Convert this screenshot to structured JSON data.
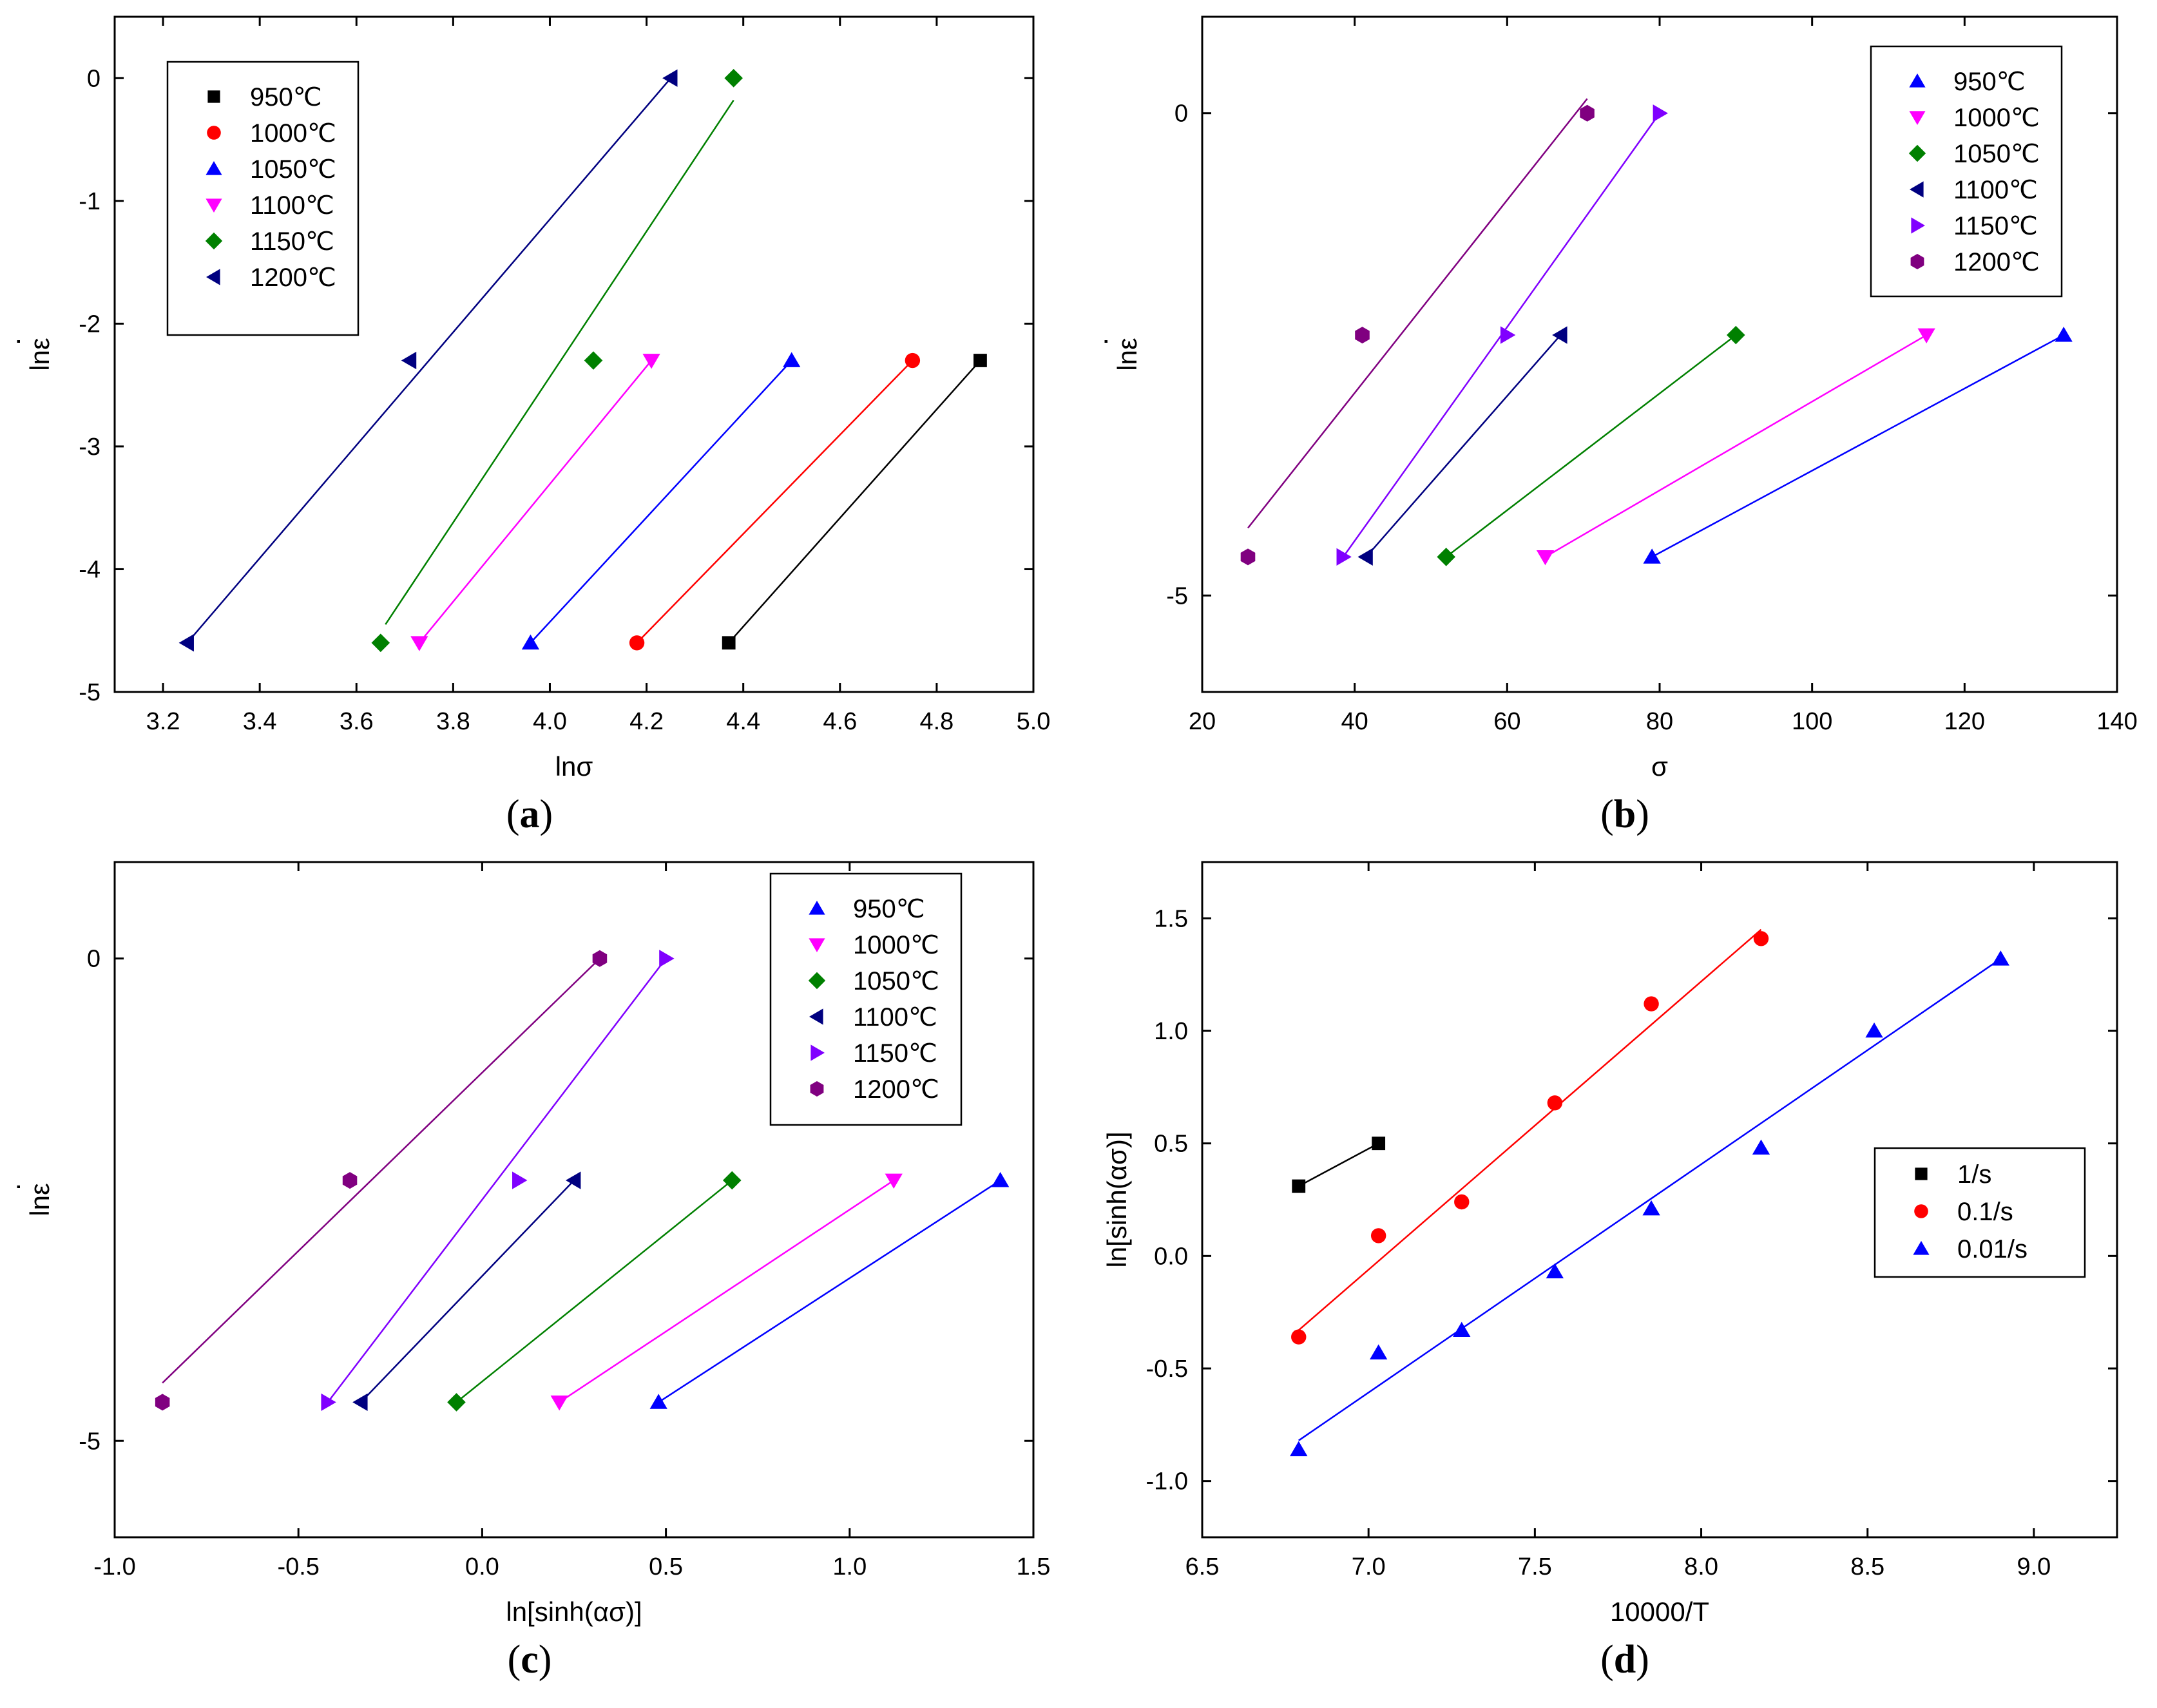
{
  "chart_data": [
    {
      "type": "scatter",
      "caption": "a",
      "xlabel": "lnσ",
      "ylabel": "lnε",
      "ylabel_dot": "·",
      "xlim": [
        3.1,
        5.0
      ],
      "ylim": [
        -5,
        0.5
      ],
      "xticks": [
        3.2,
        3.4,
        3.6,
        3.8,
        4.0,
        4.2,
        4.4,
        4.6,
        4.8,
        5.0
      ],
      "xtick_labels": [
        "3.2",
        "3.4",
        "3.6",
        "3.8",
        "4.0",
        "4.2",
        "4.4",
        "4.6",
        "4.8",
        "5.0"
      ],
      "yticks": [
        -5,
        -4,
        -3,
        -2,
        -1,
        0
      ],
      "ytick_labels": [
        "-5",
        "-4",
        "-3",
        "-2",
        "-1",
        "0"
      ],
      "legend_position": "top-left",
      "series": [
        {
          "name": "950℃",
          "marker": "square",
          "color": "#000000",
          "x": [
            4.37,
            4.89
          ],
          "y": [
            -4.6,
            -2.3
          ],
          "fit": [
            [
              4.37,
              -4.6
            ],
            [
              4.89,
              -2.3
            ]
          ]
        },
        {
          "name": "1000℃",
          "marker": "circle",
          "color": "#ff0000",
          "x": [
            4.18,
            4.75
          ],
          "y": [
            -4.6,
            -2.3
          ],
          "fit": [
            [
              4.18,
              -4.6
            ],
            [
              4.75,
              -2.3
            ]
          ]
        },
        {
          "name": "1050℃",
          "marker": "triangle-up",
          "color": "#0000ff",
          "x": [
            3.96,
            4.5
          ],
          "y": [
            -4.6,
            -2.3
          ],
          "fit": [
            [
              3.96,
              -4.6
            ],
            [
              4.5,
              -2.3
            ]
          ]
        },
        {
          "name": "1100℃",
          "marker": "triangle-down",
          "color": "#ff00ff",
          "x": [
            3.73,
            4.21
          ],
          "y": [
            -4.6,
            -2.3
          ],
          "fit": [
            [
              3.73,
              -4.6
            ],
            [
              4.21,
              -2.3
            ]
          ]
        },
        {
          "name": "1150℃",
          "marker": "diamond",
          "color": "#008000",
          "x": [
            3.65,
            4.09,
            4.38
          ],
          "y": [
            -4.6,
            -2.3,
            0
          ],
          "fit": [
            [
              3.66,
              -4.45
            ],
            [
              4.38,
              -0.18
            ]
          ]
        },
        {
          "name": "1200℃",
          "marker": "triangle-left",
          "color": "#000080",
          "x": [
            3.25,
            3.71,
            4.25
          ],
          "y": [
            -4.6,
            -2.3,
            0
          ],
          "fit": [
            [
              3.25,
              -4.6
            ],
            [
              4.25,
              0
            ]
          ]
        }
      ]
    },
    {
      "type": "scatter",
      "caption": "b",
      "xlabel": "σ",
      "ylabel": "lnε",
      "ylabel_dot": "·",
      "xlim": [
        20,
        140
      ],
      "ylim": [
        -6,
        1
      ],
      "xticks": [
        20,
        40,
        60,
        80,
        100,
        120,
        140
      ],
      "xtick_labels": [
        "20",
        "40",
        "60",
        "80",
        "100",
        "120",
        "140"
      ],
      "yticks": [
        -5,
        0
      ],
      "ytick_labels": [
        "-5",
        "0"
      ],
      "legend_position": "top-right",
      "series": [
        {
          "name": "950℃",
          "marker": "triangle-up",
          "color": "#0000ff",
          "x": [
            79,
            133
          ],
          "y": [
            -4.6,
            -2.3
          ],
          "fit": [
            [
              79,
              -4.6
            ],
            [
              133,
              -2.3
            ]
          ]
        },
        {
          "name": "1000℃",
          "marker": "triangle-down",
          "color": "#ff00ff",
          "x": [
            65,
            115
          ],
          "y": [
            -4.6,
            -2.3
          ],
          "fit": [
            [
              65,
              -4.6
            ],
            [
              115,
              -2.3
            ]
          ]
        },
        {
          "name": "1050℃",
          "marker": "diamond",
          "color": "#008000",
          "x": [
            52,
            90
          ],
          "y": [
            -4.6,
            -2.3
          ],
          "fit": [
            [
              52,
              -4.6
            ],
            [
              90,
              -2.3
            ]
          ]
        },
        {
          "name": "1100℃",
          "marker": "triangle-left",
          "color": "#000080",
          "x": [
            41.5,
            67
          ],
          "y": [
            -4.6,
            -2.3
          ],
          "fit": [
            [
              41.5,
              -4.6
            ],
            [
              67,
              -2.3
            ]
          ]
        },
        {
          "name": "1150℃",
          "marker": "triangle-right",
          "color": "#8000ff",
          "x": [
            38.5,
            60,
            80
          ],
          "y": [
            -4.6,
            -2.3,
            0
          ],
          "fit": [
            [
              38.5,
              -4.6
            ],
            [
              80,
              0
            ]
          ]
        },
        {
          "name": "1200℃",
          "marker": "hexagon",
          "color": "#800080",
          "x": [
            26,
            41,
            70.5
          ],
          "y": [
            -4.6,
            -2.3,
            0
          ],
          "fit": [
            [
              26,
              -4.3
            ],
            [
              70.5,
              0.15
            ]
          ]
        }
      ]
    },
    {
      "type": "scatter",
      "caption": "c",
      "xlabel": "ln[sinh(ασ)]",
      "ylabel": "lnε",
      "ylabel_dot": "·",
      "xlim": [
        -1.0,
        1.5
      ],
      "ylim": [
        -6,
        1
      ],
      "xticks": [
        -1.0,
        -0.5,
        0.0,
        0.5,
        1.0,
        1.5
      ],
      "xtick_labels": [
        "-1.0",
        "-0.5",
        "0.0",
        "0.5",
        "1.0",
        "1.5"
      ],
      "yticks": [
        -5,
        0
      ],
      "ytick_labels": [
        "-5",
        "0"
      ],
      "legend_position": "top-right",
      "series": [
        {
          "name": "950℃",
          "marker": "triangle-up",
          "color": "#0000ff",
          "x": [
            0.48,
            1.41
          ],
          "y": [
            -4.6,
            -2.3
          ],
          "fit": [
            [
              0.48,
              -4.6
            ],
            [
              1.41,
              -2.3
            ]
          ]
        },
        {
          "name": "1000℃",
          "marker": "triangle-down",
          "color": "#ff00ff",
          "x": [
            0.21,
            1.12
          ],
          "y": [
            -4.6,
            -2.3
          ],
          "fit": [
            [
              0.21,
              -4.6
            ],
            [
              1.12,
              -2.3
            ]
          ]
        },
        {
          "name": "1050℃",
          "marker": "diamond",
          "color": "#008000",
          "x": [
            -0.07,
            0.68
          ],
          "y": [
            -4.6,
            -2.3
          ],
          "fit": [
            [
              -0.07,
              -4.6
            ],
            [
              0.68,
              -2.3
            ]
          ]
        },
        {
          "name": "1100℃",
          "marker": "triangle-left",
          "color": "#000080",
          "x": [
            -0.33,
            0.25
          ],
          "y": [
            -4.6,
            -2.3
          ],
          "fit": [
            [
              -0.33,
              -4.6
            ],
            [
              0.25,
              -2.3
            ]
          ]
        },
        {
          "name": "1150℃",
          "marker": "triangle-right",
          "color": "#8000ff",
          "x": [
            -0.42,
            0.1,
            0.5
          ],
          "y": [
            -4.6,
            -2.3,
            0
          ],
          "fit": [
            [
              -0.42,
              -4.6
            ],
            [
              0.5,
              0
            ]
          ]
        },
        {
          "name": "1200℃",
          "marker": "hexagon",
          "color": "#800080",
          "x": [
            -0.87,
            -0.36,
            0.32
          ],
          "y": [
            -4.6,
            -2.3,
            0
          ],
          "fit": [
            [
              -0.87,
              -4.4
            ],
            [
              0.32,
              0
            ]
          ]
        }
      ]
    },
    {
      "type": "scatter",
      "caption": "d",
      "xlabel": "10000/T",
      "ylabel": "ln[sinh(ασ)]",
      "xlim": [
        6.5,
        9.25
      ],
      "ylim": [
        -1.25,
        1.75
      ],
      "xticks": [
        6.5,
        7.0,
        7.5,
        8.0,
        8.5,
        9.0
      ],
      "xtick_labels": [
        "6.5",
        "7.0",
        "7.5",
        "8.0",
        "8.5",
        "9.0"
      ],
      "yticks": [
        -1.0,
        -0.5,
        0.0,
        0.5,
        1.0,
        1.5
      ],
      "ytick_labels": [
        "-1.0",
        "-0.5",
        "0.0",
        "0.5",
        "1.0",
        "1.5"
      ],
      "legend_position": "center-right",
      "series": [
        {
          "name": "1/s",
          "marker": "square",
          "color": "#000000",
          "x": [
            6.79,
            7.03
          ],
          "y": [
            0.31,
            0.5
          ],
          "fit": [
            [
              6.79,
              0.31
            ],
            [
              7.03,
              0.5
            ]
          ]
        },
        {
          "name": "0.1/s",
          "marker": "circle",
          "color": "#ff0000",
          "x": [
            6.79,
            7.03,
            7.28,
            7.56,
            7.85,
            8.18
          ],
          "y": [
            -0.36,
            0.09,
            0.24,
            0.68,
            1.12,
            1.41
          ],
          "fit": [
            [
              6.79,
              -0.33
            ],
            [
              8.18,
              1.45
            ]
          ]
        },
        {
          "name": "0.01/s",
          "marker": "triangle-up",
          "color": "#0000ff",
          "x": [
            6.79,
            7.03,
            7.28,
            7.56,
            7.85,
            8.18,
            8.52,
            8.9
          ],
          "y": [
            -0.86,
            -0.43,
            -0.33,
            -0.07,
            0.21,
            0.48,
            1.0,
            1.32
          ],
          "fit": [
            [
              6.79,
              -0.82
            ],
            [
              8.9,
              1.32
            ]
          ]
        }
      ]
    }
  ]
}
